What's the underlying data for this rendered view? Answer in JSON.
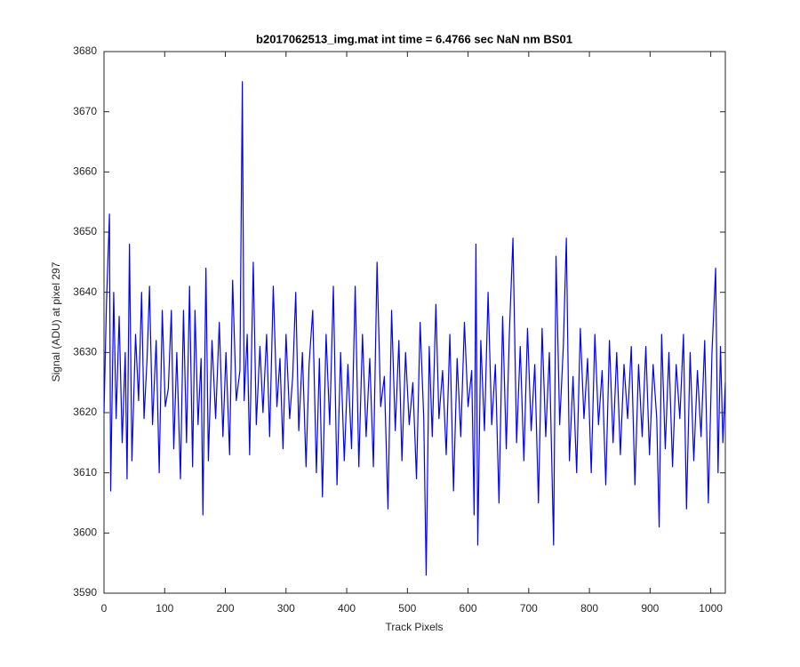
{
  "chart_data": {
    "type": "line",
    "title": "b2017062513_img.mat int time = 6.4766 sec  NaN nm BS01",
    "x_label": "Track Pixels",
    "y_label": "Signal (ADU) at pixel 297",
    "xlim": [
      0,
      1024
    ],
    "ylim": [
      3590,
      3680
    ],
    "xticks": [
      0,
      100,
      200,
      300,
      400,
      500,
      600,
      700,
      800,
      900,
      1000
    ],
    "yticks": [
      3590,
      3600,
      3610,
      3620,
      3630,
      3640,
      3650,
      3660,
      3670,
      3680
    ],
    "grid": false,
    "series": [
      {
        "color": "#0000ff",
        "x": [
          0,
          4,
          9,
          11,
          16,
          20,
          25,
          30,
          35,
          38,
          42,
          46,
          52,
          57,
          62,
          66,
          71,
          75,
          80,
          86,
          91,
          96,
          101,
          106,
          111,
          115,
          120,
          126,
          131,
          136,
          141,
          146,
          150,
          155,
          160,
          163,
          168,
          172,
          178,
          184,
          190,
          196,
          201,
          207,
          212,
          218,
          224,
          228,
          231,
          236,
          240,
          246,
          251,
          257,
          262,
          268,
          273,
          279,
          285,
          290,
          295,
          300,
          306,
          311,
          316,
          321,
          327,
          333,
          338,
          344,
          350,
          355,
          360,
          366,
          372,
          378,
          384,
          390,
          396,
          402,
          408,
          414,
          420,
          426,
          432,
          438,
          444,
          450,
          456,
          462,
          468,
          474,
          480,
          486,
          491,
          497,
          503,
          509,
          515,
          521,
          527,
          531,
          536,
          541,
          547,
          552,
          558,
          564,
          570,
          576,
          582,
          588,
          594,
          600,
          606,
          610,
          613,
          616,
          621,
          627,
          633,
          639,
          645,
          651,
          657,
          663,
          668,
          674,
          680,
          686,
          692,
          698,
          704,
          710,
          716,
          722,
          728,
          734,
          741,
          745,
          751,
          757,
          762,
          767,
          773,
          779,
          785,
          791,
          797,
          803,
          809,
          815,
          821,
          827,
          833,
          839,
          845,
          851,
          857,
          863,
          869,
          875,
          881,
          887,
          893,
          899,
          905,
          911,
          915,
          919,
          925,
          931,
          937,
          943,
          949,
          955,
          960,
          966,
          972,
          978,
          984,
          990,
          996,
          1002,
          1008,
          1012,
          1016,
          1020,
          1024
        ],
        "values": [
          3620,
          3638,
          3653,
          3607,
          3640,
          3619,
          3636,
          3615,
          3630,
          3609,
          3648,
          3612,
          3633,
          3622,
          3640,
          3619,
          3629,
          3641,
          3618,
          3632,
          3610,
          3637,
          3621,
          3624,
          3637,
          3614,
          3630,
          3609,
          3637,
          3615,
          3641,
          3611,
          3637,
          3618,
          3629,
          3603,
          3644,
          3612,
          3632,
          3619,
          3635,
          3616,
          3630,
          3613,
          3642,
          3622,
          3627,
          3675,
          3622,
          3633,
          3613,
          3645,
          3618,
          3631,
          3620,
          3633,
          3616,
          3641,
          3621,
          3629,
          3614,
          3633,
          3619,
          3626,
          3640,
          3617,
          3630,
          3611,
          3628,
          3637,
          3610,
          3629,
          3606,
          3633,
          3618,
          3641,
          3608,
          3630,
          3612,
          3628,
          3614,
          3641,
          3611,
          3633,
          3616,
          3629,
          3611,
          3645,
          3621,
          3626,
          3604,
          3637,
          3617,
          3632,
          3612,
          3630,
          3618,
          3625,
          3609,
          3635,
          3619,
          3593,
          3631,
          3616,
          3638,
          3619,
          3627,
          3613,
          3633,
          3607,
          3629,
          3616,
          3635,
          3621,
          3627,
          3603,
          3648,
          3598,
          3632,
          3617,
          3640,
          3618,
          3628,
          3605,
          3636,
          3614,
          3633,
          3649,
          3615,
          3631,
          3612,
          3634,
          3617,
          3628,
          3605,
          3634,
          3616,
          3630,
          3598,
          3646,
          3618,
          3631,
          3649,
          3612,
          3626,
          3610,
          3634,
          3619,
          3629,
          3610,
          3633,
          3618,
          3627,
          3608,
          3632,
          3615,
          3630,
          3613,
          3628,
          3619,
          3631,
          3608,
          3628,
          3616,
          3631,
          3613,
          3628,
          3619,
          3601,
          3633,
          3614,
          3630,
          3611,
          3628,
          3619,
          3633,
          3604,
          3630,
          3612,
          3627,
          3616,
          3632,
          3605,
          3630,
          3644,
          3610,
          3631,
          3615,
          3625
        ]
      }
    ]
  }
}
